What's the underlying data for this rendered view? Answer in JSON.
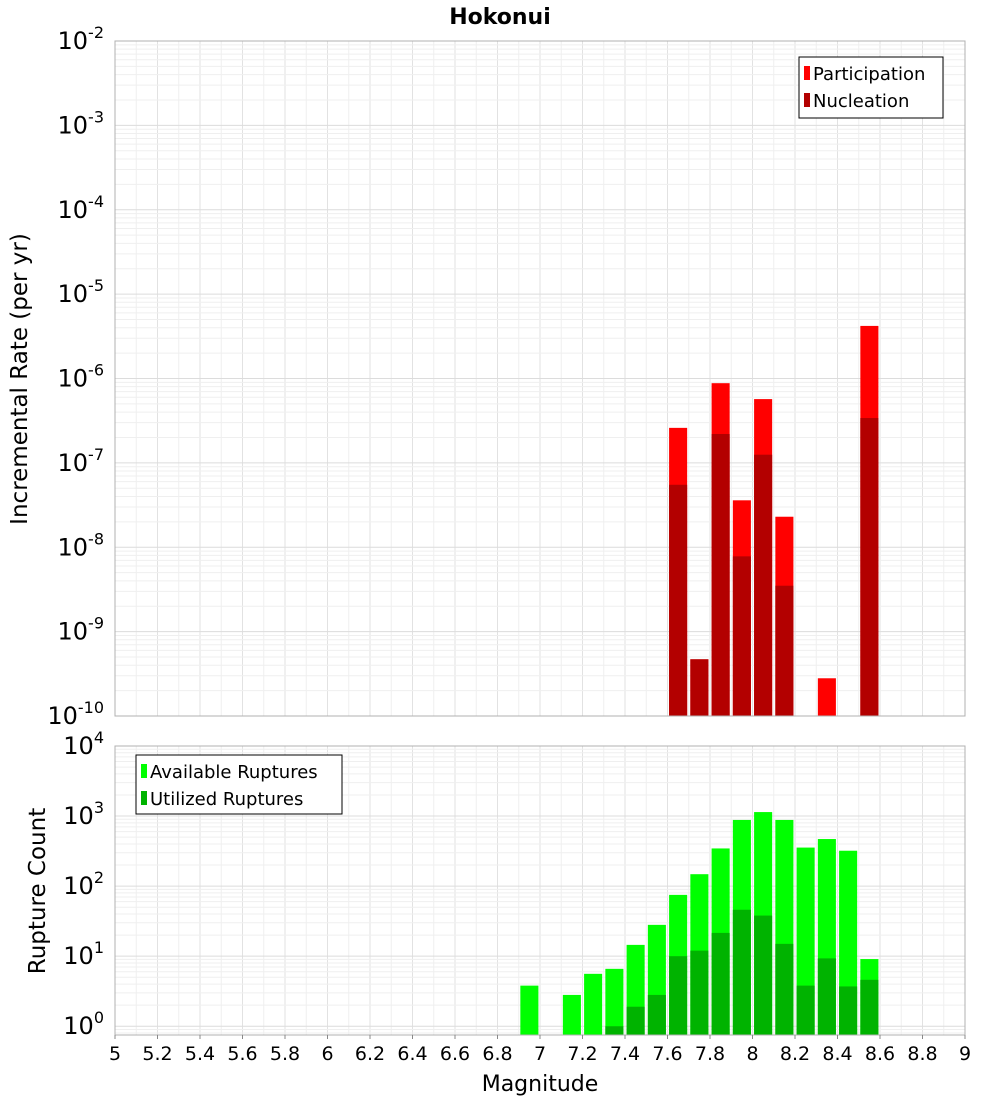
{
  "chart_data": [
    {
      "type": "bar",
      "title": "Hokonui",
      "xlabel": "Magnitude",
      "ylabel": "Incremental Rate (per yr)",
      "yscale": "log",
      "ylim": [
        1e-10,
        0.01
      ],
      "xlim": [
        5,
        9
      ],
      "y_tick_mantissa": "10",
      "y_tick_exponents": [
        "-10",
        "-9",
        "-8",
        "-7",
        "-6",
        "-5",
        "-4",
        "-3",
        "-2"
      ],
      "bar_width": 0.085,
      "legend_position": "top-right",
      "series": [
        {
          "name": "Participation",
          "color": "#ff0000",
          "x": [
            7.65,
            7.75,
            7.85,
            7.95,
            8.05,
            8.15,
            8.35,
            8.55
          ],
          "values": [
            2.6e-07,
            4.7e-10,
            8.8e-07,
            3.6e-08,
            5.7e-07,
            2.3e-08,
            2.8e-10,
            4.2e-06
          ]
        },
        {
          "name": "Nucleation",
          "color": "#b30000",
          "x": [
            7.65,
            7.75,
            7.85,
            7.95,
            8.05,
            8.15,
            8.55
          ],
          "values": [
            5.5e-08,
            4.7e-10,
            2.2e-07,
            7.8e-09,
            1.25e-07,
            3.5e-09,
            3.4e-07
          ]
        }
      ]
    },
    {
      "type": "bar",
      "title": "",
      "xlabel": "Magnitude",
      "ylabel": "Rupture Count",
      "yscale": "log",
      "ylim": [
        0.75,
        10000
      ],
      "xlim": [
        5,
        9
      ],
      "y_tick_mantissa": "10",
      "y_tick_exponents": [
        "0",
        "1",
        "2",
        "3",
        "4"
      ],
      "x_ticks": [
        "5",
        "5.2",
        "5.4",
        "5.6",
        "5.8",
        "6",
        "6.2",
        "6.4",
        "6.6",
        "6.8",
        "7",
        "7.2",
        "7.4",
        "7.6",
        "7.8",
        "8",
        "8.2",
        "8.4",
        "8.6",
        "8.8",
        "9"
      ],
      "bar_width": 0.085,
      "legend_position": "top-left",
      "series": [
        {
          "name": "Available Ruptures",
          "color": "#00ff00",
          "x": [
            6.95,
            7.15,
            7.25,
            7.35,
            7.45,
            7.55,
            7.65,
            7.75,
            7.85,
            7.95,
            8.05,
            8.15,
            8.25,
            8.35,
            8.45,
            8.55
          ],
          "values": [
            3.8,
            2.8,
            5.6,
            6.6,
            14.5,
            28,
            75,
            148,
            345,
            880,
            1140,
            880,
            355,
            470,
            320,
            9.1
          ]
        },
        {
          "name": "Utilized Ruptures",
          "color": "#00b300",
          "x": [
            7.35,
            7.45,
            7.55,
            7.65,
            7.75,
            7.85,
            7.95,
            8.05,
            8.15,
            8.25,
            8.35,
            8.45,
            8.55
          ],
          "values": [
            1,
            1.9,
            2.8,
            10,
            12,
            21.5,
            46,
            38,
            15,
            3.8,
            9.3,
            3.7,
            4.6
          ]
        }
      ]
    }
  ]
}
